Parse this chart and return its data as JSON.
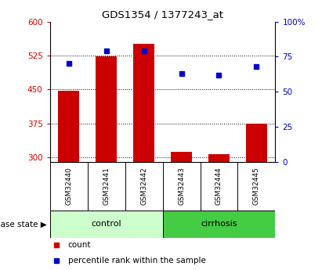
{
  "title": "GDS1354 / 1377243_at",
  "samples": [
    "GSM32440",
    "GSM32441",
    "GSM32442",
    "GSM32443",
    "GSM32444",
    "GSM32445"
  ],
  "count_values": [
    447,
    523,
    551,
    313,
    307,
    375
  ],
  "count_base": 290,
  "percentile_values": [
    70,
    79,
    79,
    63,
    62,
    68
  ],
  "left_ylim": [
    290,
    600
  ],
  "left_yticks": [
    300,
    375,
    450,
    525,
    600
  ],
  "right_ylim": [
    0,
    100
  ],
  "right_yticks": [
    0,
    25,
    50,
    75,
    100
  ],
  "right_yticklabels": [
    "0",
    "25",
    "50",
    "75",
    "100%"
  ],
  "bar_color": "#cc0000",
  "dot_color": "#0000cc",
  "left_tick_color": "#cc0000",
  "right_tick_color": "#0000cc",
  "groups": [
    {
      "label": "control",
      "indices": [
        0,
        1,
        2
      ],
      "color": "#ccffcc"
    },
    {
      "label": "cirrhosis",
      "indices": [
        3,
        4,
        5
      ],
      "color": "#44cc44"
    }
  ],
  "group_label": "disease state",
  "legend_items": [
    {
      "label": "count",
      "color": "#cc0000"
    },
    {
      "label": "percentile rank within the sample",
      "color": "#0000cc"
    }
  ],
  "dotted_line_color": "black",
  "background_color": "#ffffff",
  "sample_box_color": "#cccccc",
  "bar_width": 0.55
}
